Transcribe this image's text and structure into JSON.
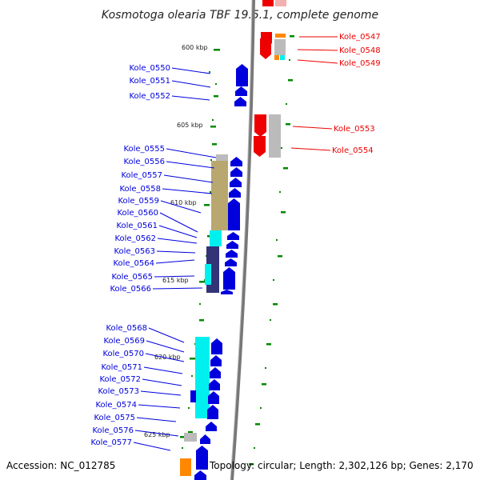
{
  "title": "Kosmotoga olearia TBF 19.5.1, complete genome",
  "footer": {
    "accession": "Accession: NC_012785",
    "topology": "Topology: circular; Length: 2,302,126 bp; Genes: 2,170"
  },
  "colors": {
    "left_strand": "#0000dd",
    "right_strand": "#ee0000",
    "backbone": "#777777",
    "tick": "#008800",
    "cyan": "#00f0f0",
    "olive": "#b8a870",
    "navy": "#333377",
    "grey": "#bbbbbb",
    "orange": "#ff8800"
  },
  "kbp_markers": [
    {
      "label": "600 kbp"
    },
    {
      "label": "605 kbp"
    },
    {
      "label": "610 kbp"
    },
    {
      "label": "615 kbp"
    },
    {
      "label": "620 kbp"
    },
    {
      "label": "625 kbp"
    }
  ],
  "left_labels": [
    "Kole_0550",
    "Kole_0551",
    "Kole_0552",
    "Kole_0555",
    "Kole_0556",
    "Kole_0557",
    "Kole_0558",
    "Kole_0559",
    "Kole_0560",
    "Kole_0561",
    "Kole_0562",
    "Kole_0563",
    "Kole_0564",
    "Kole_0565",
    "Kole_0566",
    "Kole_0568",
    "Kole_0569",
    "Kole_0570",
    "Kole_0571",
    "Kole_0572",
    "Kole_0573",
    "Kole_0574",
    "Kole_0575",
    "Kole_0576",
    "Kole_0577"
  ],
  "right_labels": [
    "Kole_0547",
    "Kole_0548",
    "Kole_0549",
    "Kole_0553",
    "Kole_0554"
  ]
}
